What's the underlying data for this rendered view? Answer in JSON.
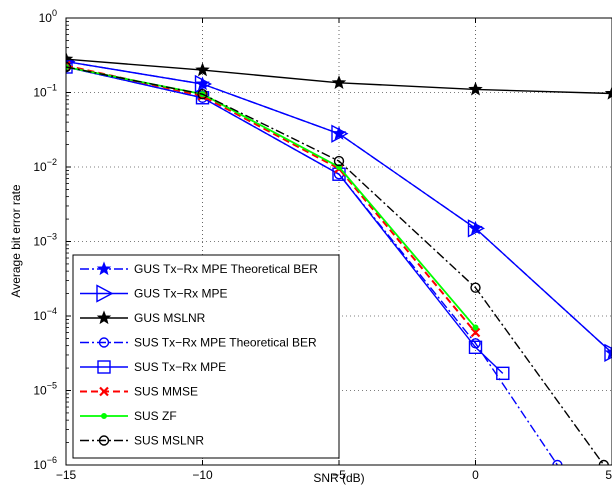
{
  "chart_data": {
    "type": "line",
    "title": "",
    "xlabel": "SNR (dB)",
    "ylabel": "Average bit error rate",
    "xlim": [
      -15,
      5
    ],
    "ylim": [
      1e-06,
      1
    ],
    "yscale": "log",
    "grid": true,
    "legend_position": "bottom-left",
    "x_ticks": [
      {
        "value": -15,
        "label": "−15"
      },
      {
        "value": -10,
        "label": "−10"
      },
      {
        "value": -5,
        "label": "−5"
      },
      {
        "value": 0,
        "label": "0"
      },
      {
        "value": 5,
        "label": "5"
      }
    ],
    "y_ticks": [
      {
        "exp": 0,
        "base": "10",
        "sup": "0"
      },
      {
        "exp": -1,
        "base": "10",
        "sup": "−1"
      },
      {
        "exp": -2,
        "base": "10",
        "sup": "−2"
      },
      {
        "exp": -3,
        "base": "10",
        "sup": "−3"
      },
      {
        "exp": -4,
        "base": "10",
        "sup": "−4"
      },
      {
        "exp": -5,
        "base": "10",
        "sup": "−5"
      },
      {
        "exp": -6,
        "base": "10",
        "sup": "−6"
      }
    ],
    "series": [
      {
        "name": "GUS Tx−Rx MPE Theoretical BER",
        "color": "#0000ff",
        "dash": "dashdot",
        "marker": "star",
        "x": [
          -15,
          -10,
          -5,
          0,
          5
        ],
        "y": [
          0.26,
          0.13,
          0.028,
          0.0015,
          3.2e-05
        ]
      },
      {
        "name": "GUS Tx−Rx MPE",
        "color": "#0000ff",
        "dash": "solid",
        "marker": "triangle-right",
        "x": [
          -15,
          -10,
          -5,
          0,
          5
        ],
        "y": [
          0.26,
          0.13,
          0.028,
          0.0015,
          3.2e-05
        ]
      },
      {
        "name": "GUS MSLNR",
        "color": "#000000",
        "dash": "solid",
        "marker": "star",
        "x": [
          -15,
          -10,
          -5,
          0,
          5
        ],
        "y": [
          0.28,
          0.2,
          0.135,
          0.11,
          0.097
        ]
      },
      {
        "name": "SUS Tx−Rx MPE Theoretical BER",
        "color": "#0000ff",
        "dash": "dashdot",
        "marker": "circle",
        "x": [
          -15,
          -10,
          -5,
          0,
          3
        ],
        "y": [
          0.22,
          0.085,
          0.008,
          4.3e-05,
          1e-06
        ]
      },
      {
        "name": "SUS Tx−Rx MPE",
        "color": "#0000ff",
        "dash": "solid",
        "marker": "square",
        "x": [
          -15,
          -10,
          -5,
          0,
          1
        ],
        "y": [
          0.22,
          0.085,
          0.008,
          3.8e-05,
          1.7e-05
        ]
      },
      {
        "name": "SUS MMSE",
        "color": "#ff0000",
        "dash": "dashed",
        "marker": "x",
        "x": [
          -15,
          -10,
          -5,
          0
        ],
        "y": [
          0.23,
          0.09,
          0.0095,
          6e-05
        ]
      },
      {
        "name": "SUS ZF",
        "color": "#00ff00",
        "dash": "solid",
        "marker": "dot",
        "x": [
          -15,
          -10,
          -5,
          0
        ],
        "y": [
          0.22,
          0.095,
          0.01,
          7e-05
        ]
      },
      {
        "name": "SUS MSLNR",
        "color": "#000000",
        "dash": "dashdot",
        "marker": "circle",
        "x": [
          -15,
          -10,
          -5,
          0,
          4.7
        ],
        "y": [
          0.22,
          0.095,
          0.012,
          0.00024,
          1e-06
        ]
      }
    ]
  }
}
